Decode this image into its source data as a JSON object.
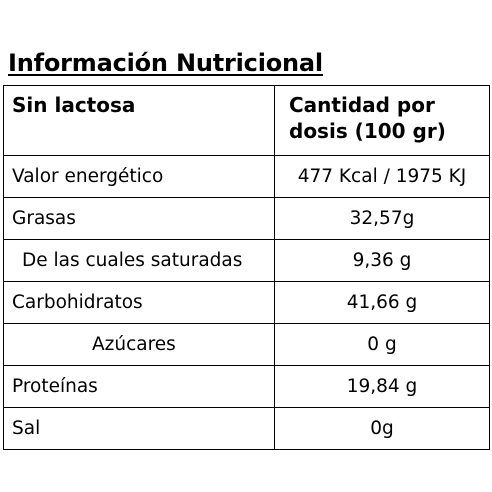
{
  "title": "Información Nutricional",
  "header": {
    "label": "Sin lactosa",
    "amount_line1": "Cantidad por",
    "amount_line2": "dosis (100 gr)"
  },
  "rows": [
    {
      "label": "Valor energético",
      "value": "477 Kcal / 1975 KJ"
    },
    {
      "label": "Grasas",
      "value": "32,57g"
    },
    {
      "label": "De las cuales saturadas",
      "value": "9,36 g"
    },
    {
      "label": "Carbohidratos",
      "value": "41,66 g"
    },
    {
      "label": "Azúcares",
      "value": "0 g"
    },
    {
      "label": "Proteínas",
      "value": "19,84 g"
    },
    {
      "label": "Sal",
      "value": "0g"
    }
  ]
}
